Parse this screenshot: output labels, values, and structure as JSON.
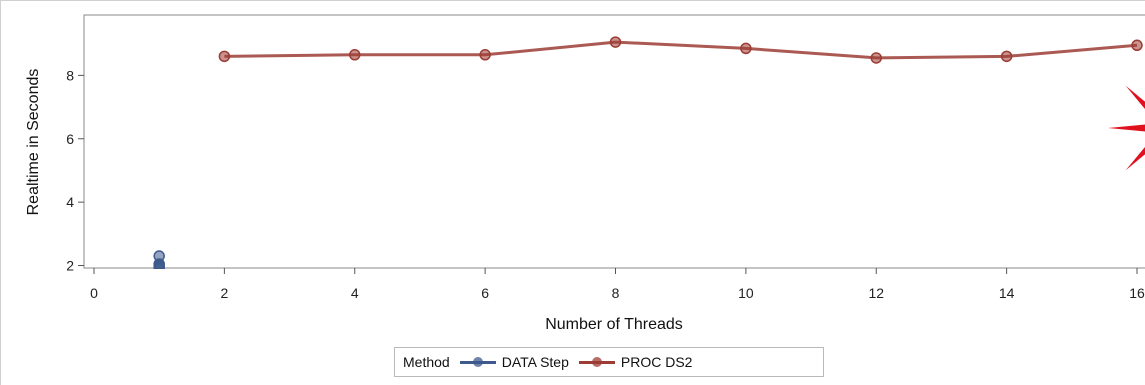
{
  "chart_data": {
    "type": "line",
    "xlabel": "Number of Threads",
    "ylabel": "Realtime in Seconds",
    "xlim": [
      0,
      16
    ],
    "ylim": [
      1.6,
      9.4
    ],
    "xticks": [
      0,
      2,
      4,
      6,
      8,
      10,
      12,
      14,
      16
    ],
    "yticks": [
      2,
      4,
      6,
      8
    ],
    "grid": false,
    "legend_title": "Method",
    "legend_position": "bottom",
    "series": [
      {
        "name": "DATA Step",
        "color": "#3e5a8c",
        "x": [
          1,
          1,
          1,
          1,
          1
        ],
        "y": [
          2.3,
          2.05,
          1.95,
          1.9,
          2.0
        ]
      },
      {
        "name": "PROC DS2",
        "color": "#9c3c35",
        "x": [
          2,
          4,
          6,
          8,
          10,
          12,
          14,
          16
        ],
        "y": [
          8.6,
          8.65,
          8.65,
          9.05,
          8.85,
          8.55,
          8.6,
          8.95
        ]
      }
    ],
    "annotation_color": "#e0101f"
  }
}
